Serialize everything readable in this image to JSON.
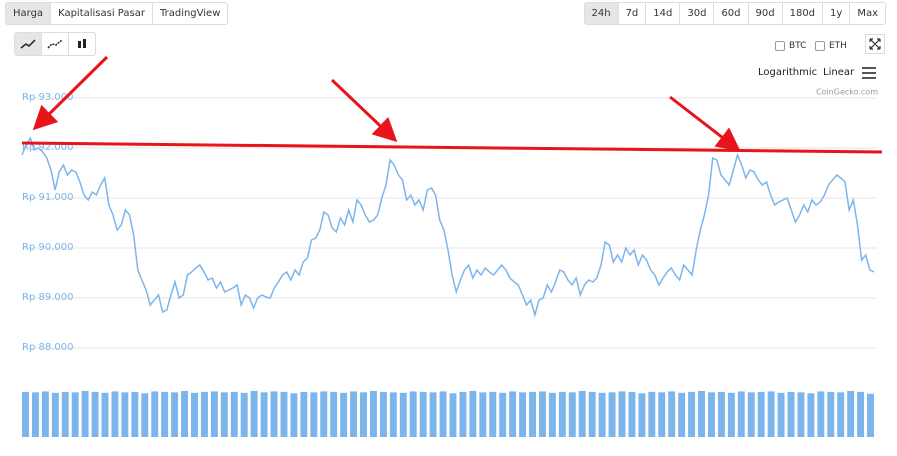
{
  "ui": {
    "tabs": [
      "Harga",
      "Kapitalisasi Pasar",
      "TradingView"
    ],
    "ranges": [
      "24h",
      "7d",
      "14d",
      "30d",
      "60d",
      "90d",
      "180d",
      "1y",
      "Max"
    ],
    "compare": [
      "BTC",
      "ETH"
    ],
    "scales": [
      "Logarithmic",
      "Linear"
    ],
    "credit": "CoinGecko.com"
  },
  "chart_data": {
    "type": "line",
    "color": "#7cb5ec",
    "grid": true,
    "ylim": [
      87600,
      93200
    ],
    "yticks": [
      {
        "value": 88000,
        "label": "Rp 88.000"
      },
      {
        "value": 89000,
        "label": "Rp 89.000"
      },
      {
        "value": 90000,
        "label": "Rp 90.000"
      },
      {
        "value": 91000,
        "label": "Rp 91.000"
      },
      {
        "value": 92000,
        "label": "Rp 92.000"
      },
      {
        "value": 93000,
        "label": "Rp 93.000"
      }
    ],
    "values": [
      91860,
      92060,
      92200,
      91960,
      92000,
      91920,
      91800,
      91560,
      91160,
      91520,
      91660,
      91460,
      91560,
      91520,
      91320,
      91060,
      90960,
      91120,
      91060,
      91260,
      91400,
      90860,
      90660,
      90360,
      90460,
      90760,
      90660,
      90260,
      89560,
      89360,
      89160,
      88860,
      88960,
      89060,
      88720,
      88760,
      89060,
      89320,
      89000,
      89060,
      89460,
      89520,
      89600,
      89660,
      89520,
      89360,
      89400,
      89200,
      89320,
      89120,
      89160,
      89200,
      89260,
      88860,
      89060,
      89000,
      88800,
      89000,
      89060,
      89020,
      89000,
      89200,
      89320,
      89460,
      89520,
      89360,
      89560,
      89460,
      89720,
      89800,
      90160,
      90200,
      90360,
      90720,
      90660,
      90400,
      90320,
      90600,
      90460,
      90760,
      90520,
      90960,
      90860,
      90660,
      90520,
      90560,
      90660,
      91000,
      91260,
      91760,
      91660,
      91460,
      91360,
      90960,
      91060,
      90860,
      90960,
      90760,
      91160,
      91200,
      91060,
      90560,
      90360,
      89960,
      89460,
      89120,
      89360,
      89560,
      89660,
      89400,
      89560,
      89460,
      89600,
      89520,
      89460,
      89560,
      89660,
      89560,
      89400,
      89320,
      89260,
      89060,
      88860,
      88960,
      88660,
      88960,
      89000,
      89260,
      89120,
      89320,
      89560,
      89520,
      89360,
      89260,
      89400,
      89060,
      89260,
      89360,
      89320,
      89400,
      89660,
      90120,
      90060,
      89720,
      89860,
      89720,
      90000,
      89860,
      89960,
      89660,
      89860,
      89760,
      89560,
      89460,
      89260,
      89400,
      89520,
      89600,
      89460,
      89360,
      89660,
      89560,
      89460,
      89960,
      90360,
      90660,
      91060,
      91800,
      91760,
      91460,
      91360,
      91260,
      91560,
      91860,
      91660,
      91400,
      91560,
      91520,
      91360,
      91260,
      91320,
      91060,
      90860,
      90920,
      90960,
      91000,
      90760,
      90520,
      90660,
      90860,
      90720,
      90960,
      90860,
      90920,
      91060,
      91260,
      91360,
      91460,
      91400,
      91320,
      90760,
      90960,
      90460,
      89760,
      89860,
      89560,
      89520
    ],
    "volume": {
      "color": "#7cb5ec",
      "ylim": [
        0,
        100
      ],
      "values": [
        96,
        95,
        97,
        94,
        96,
        95,
        98,
        96,
        94,
        97,
        95,
        96,
        93,
        97,
        96,
        95,
        98,
        94,
        96,
        97,
        95,
        96,
        94,
        98,
        95,
        97,
        96,
        93,
        96,
        95,
        97,
        96,
        94,
        97,
        95,
        98,
        96,
        95,
        94,
        97,
        96,
        95,
        97,
        93,
        96,
        98,
        95,
        96,
        94,
        97,
        95,
        96,
        97,
        94,
        96,
        95,
        98,
        96,
        94,
        95,
        97,
        96,
        93,
        96,
        95,
        97,
        94,
        96,
        98,
        95,
        96,
        94,
        97,
        95,
        96,
        97,
        94,
        96,
        95,
        93,
        97,
        96,
        95,
        98,
        96,
        92
      ]
    }
  }
}
